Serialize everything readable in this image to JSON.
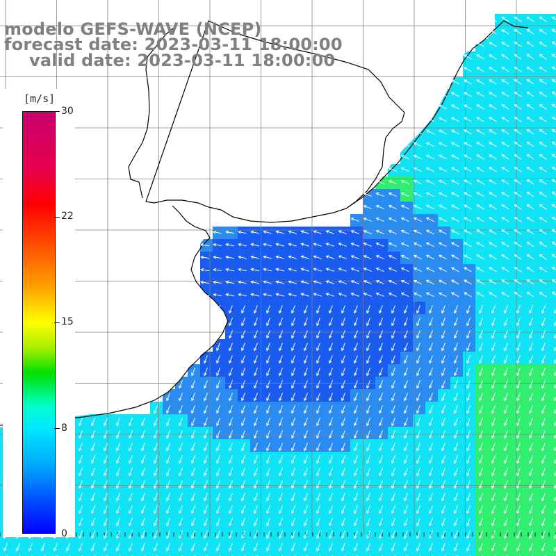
{
  "title": {
    "line1": "modelo GEFS-WAVE (NCEP)",
    "line2": "forecast date: 2023-03-11 18:00:00",
    "line3": "valid date: 2023-03-11 18:00:00"
  },
  "colorbar": {
    "unit": "[m/s]",
    "ticks": [
      {
        "label": "30",
        "value": 30
      },
      {
        "label": "22",
        "value": 22
      },
      {
        "label": "15",
        "value": 15
      },
      {
        "label": "8",
        "value": 8
      },
      {
        "label": "0",
        "value": 0
      }
    ],
    "min": 0,
    "max": 30
  },
  "colors": {
    "land": "#ffffff",
    "coastline": "#000000",
    "grid": "#808080",
    "arrow": "#ffffff",
    "speed_blue": "#1a5cf0",
    "speed_mid_blue": "#2a8cf0",
    "speed_cyan": "#10e4f4",
    "speed_green": "#30ee70"
  }
}
